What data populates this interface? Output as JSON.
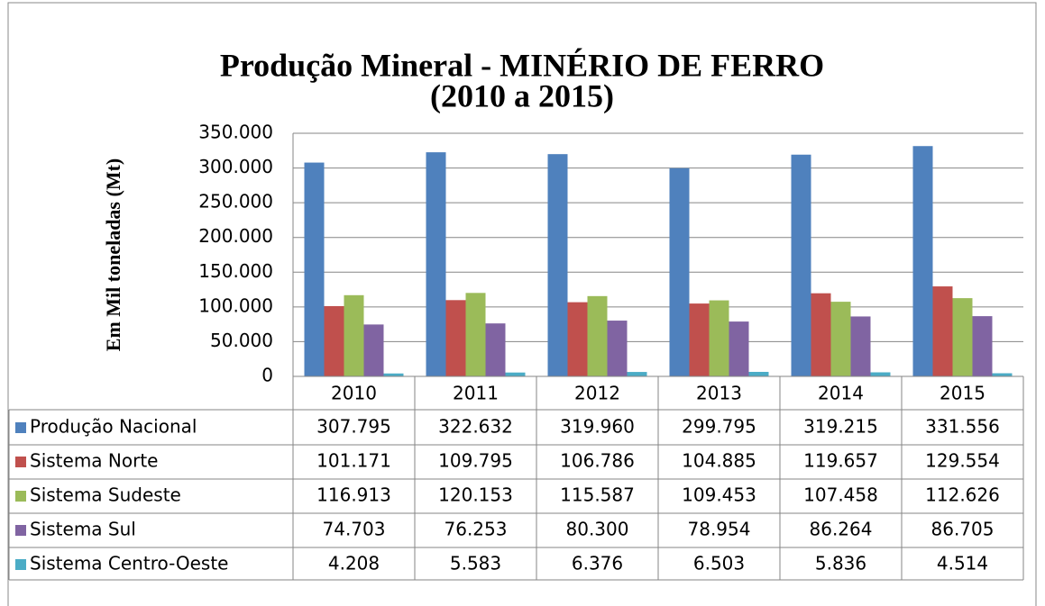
{
  "chart_data": {
    "type": "bar",
    "title": "Produção Mineral - MINÉRIO DE FERRO",
    "subtitle": "(2010 a 2015)",
    "y_label": "Em Mil toneladas (Mt)",
    "categories": [
      "2010",
      "2011",
      "2012",
      "2013",
      "2014",
      "2015"
    ],
    "series": [
      {
        "name": "Produção Nacional",
        "color": "#4f81bd",
        "values": [
          307795,
          322632,
          319960,
          299795,
          319215,
          331556
        ],
        "value_labels": [
          "307.795",
          "322.632",
          "319.960",
          "299.795",
          "319.215",
          "331.556"
        ]
      },
      {
        "name": "Sistema Norte",
        "color": "#c0504d",
        "values": [
          101171,
          109795,
          106786,
          104885,
          119657,
          129554
        ],
        "value_labels": [
          "101.171",
          "109.795",
          "106.786",
          "104.885",
          "119.657",
          "129.554"
        ]
      },
      {
        "name": "Sistema Sudeste",
        "color": "#9bbb59",
        "values": [
          116913,
          120153,
          115587,
          109453,
          107458,
          112626
        ],
        "value_labels": [
          "116.913",
          "120.153",
          "115.587",
          "109.453",
          "107.458",
          "112.626"
        ]
      },
      {
        "name": "Sistema Sul",
        "color": "#8064a2",
        "values": [
          74703,
          76253,
          80300,
          78954,
          86264,
          86705
        ],
        "value_labels": [
          "74.703",
          "76.253",
          "80.300",
          "78.954",
          "86.264",
          "86.705"
        ]
      },
      {
        "name": "Sistema Centro-Oeste",
        "color": "#4bacc6",
        "values": [
          4208,
          5583,
          6376,
          6503,
          5836,
          4514
        ],
        "value_labels": [
          "4.208",
          "5.583",
          "6.376",
          "6.503",
          "5.836",
          "4.514"
        ]
      }
    ],
    "ylim": [
      0,
      350000
    ],
    "yticks": [
      0,
      {
        "value": 50000,
        "label": "50.000"
      },
      {
        "value": 100000,
        "label": "100.000"
      },
      {
        "value": 150000,
        "label": "150.000"
      },
      {
        "value": 200000,
        "label": "200.000"
      },
      {
        "value": 250000,
        "label": "250.000"
      },
      {
        "value": 300000,
        "label": "300.000"
      },
      {
        "value": 350000,
        "label": "350.000"
      }
    ],
    "grid": true,
    "legend": "table"
  }
}
